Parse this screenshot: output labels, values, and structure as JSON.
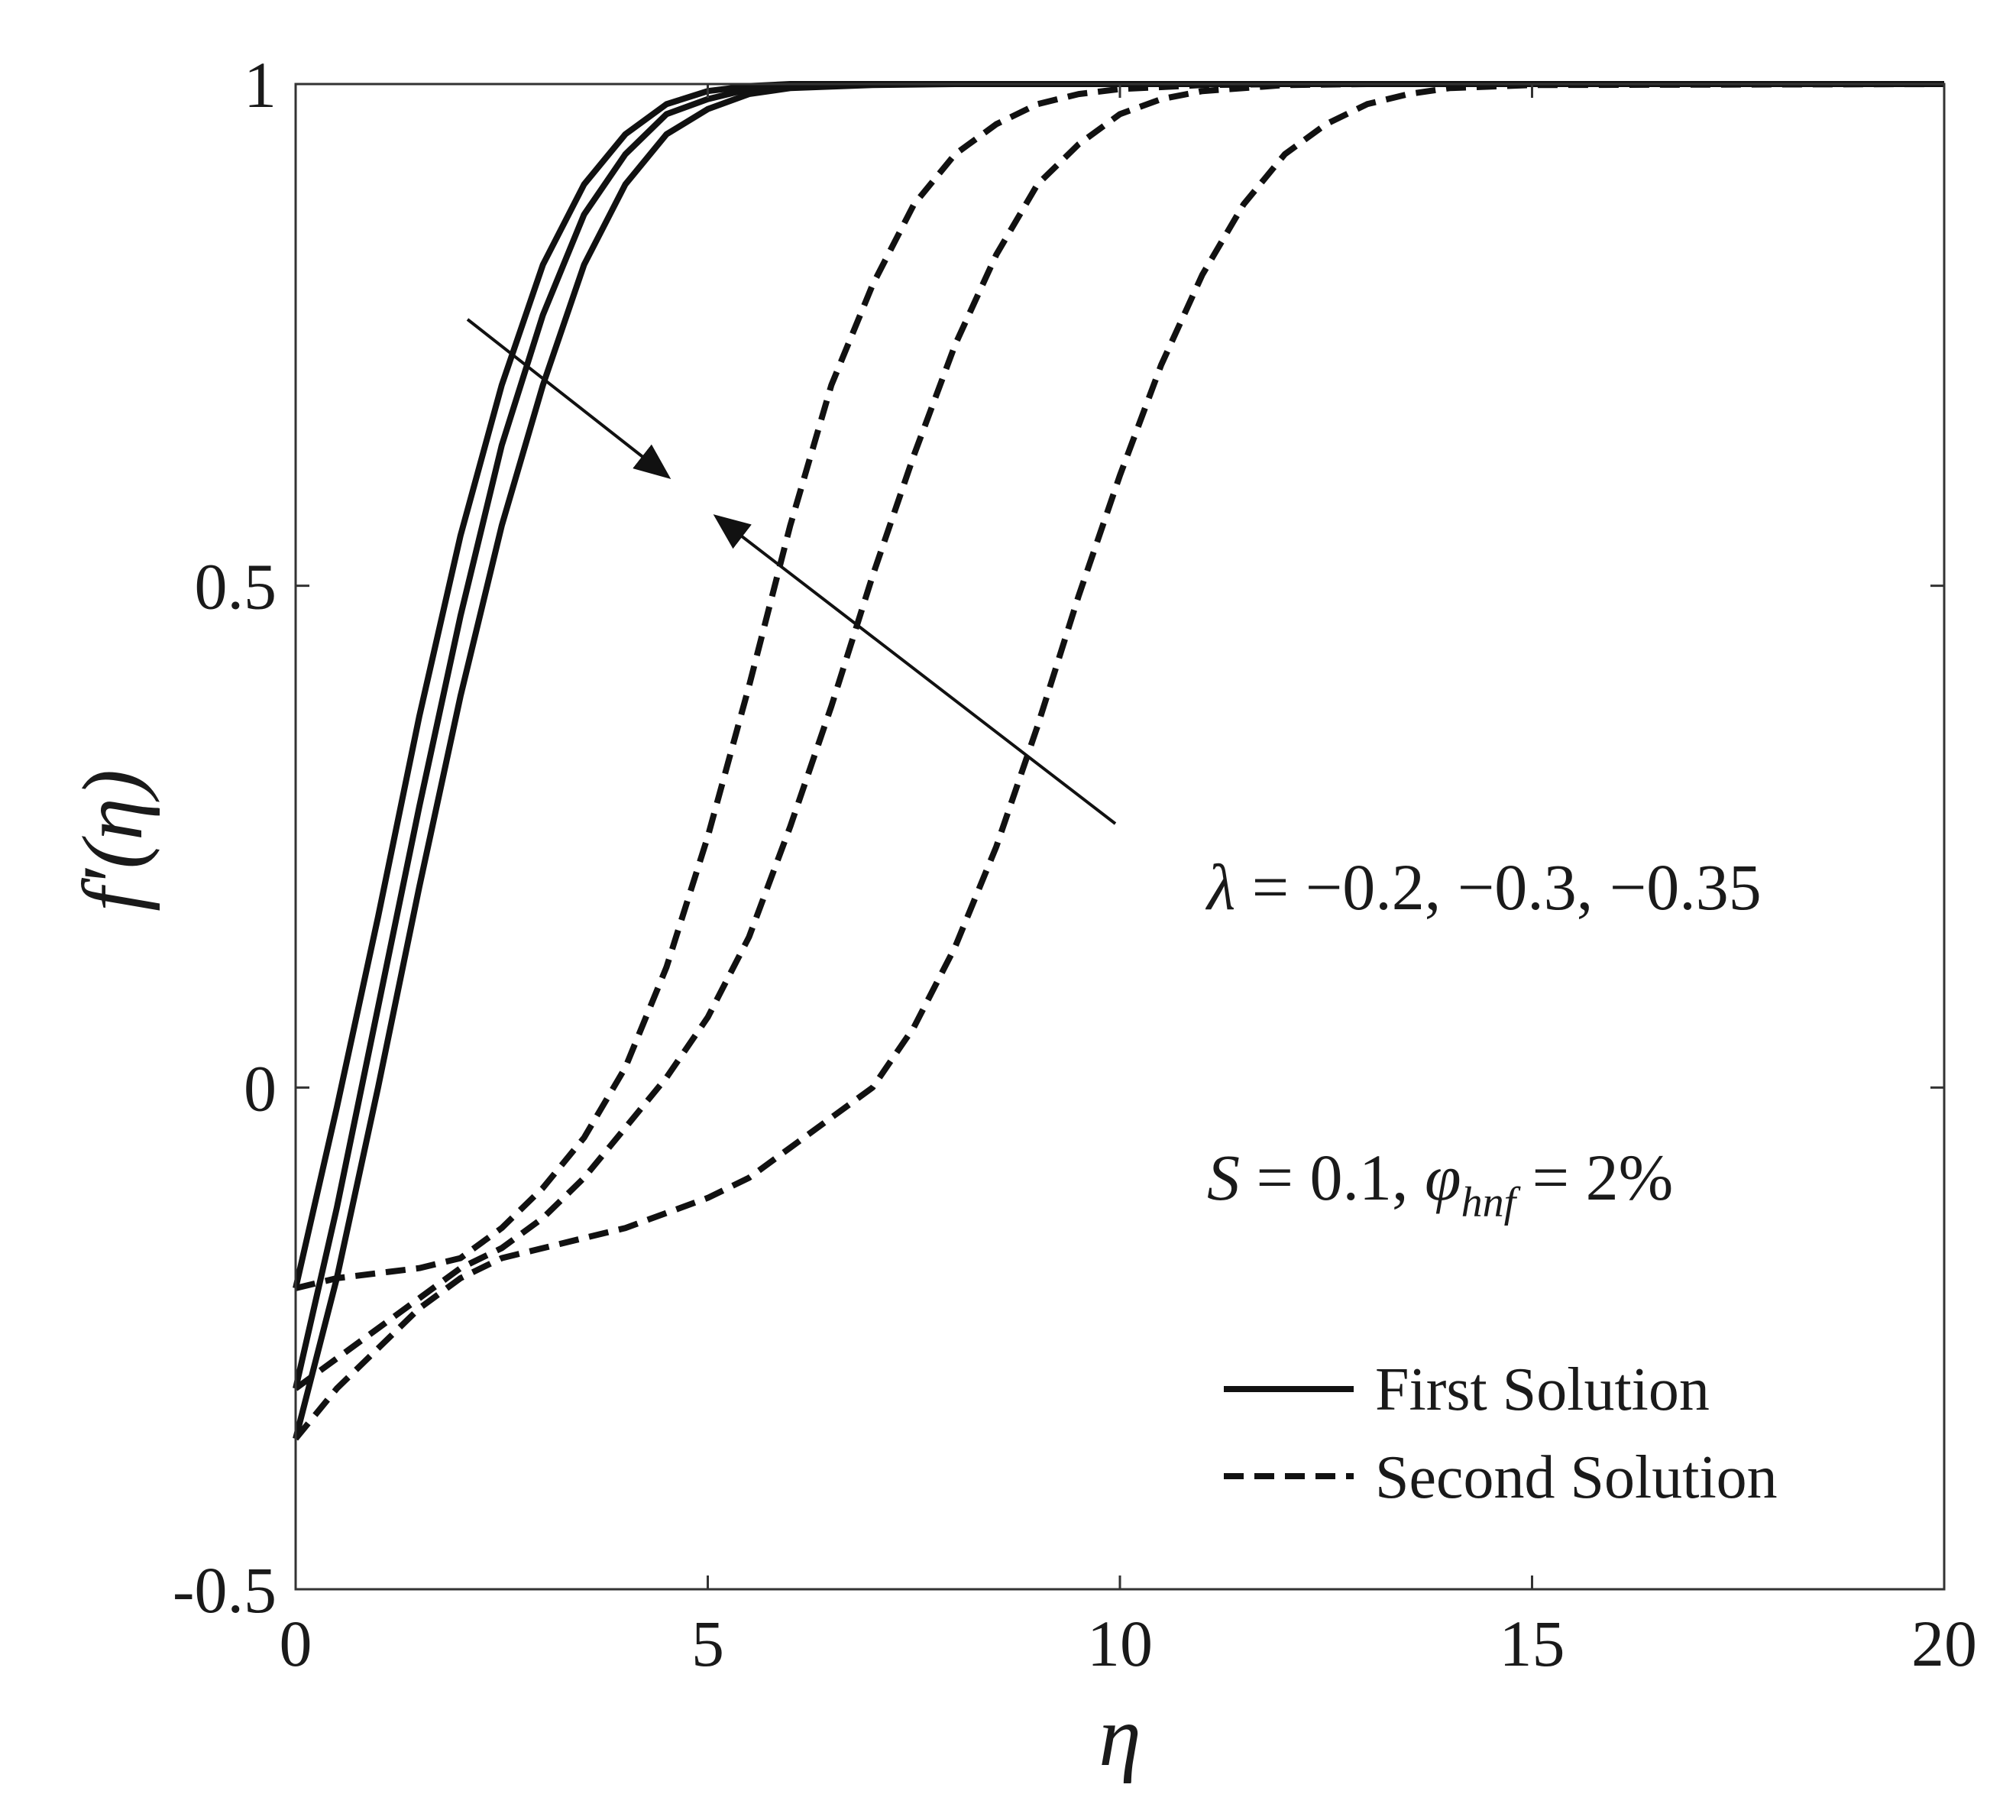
{
  "chart_data": {
    "type": "line",
    "xlabel": "η",
    "ylabel": "f′(η)",
    "xlim": [
      0,
      20
    ],
    "ylim": [
      -0.5,
      1
    ],
    "xticks": [
      0,
      5,
      10,
      15,
      20
    ],
    "yticks": [
      -0.5,
      0,
      0.5,
      1
    ],
    "xtick_labels": [
      "0",
      "5",
      "10",
      "15",
      "20"
    ],
    "ytick_labels": [
      "-0.5",
      "0",
      "0.5",
      "1"
    ],
    "grid": false,
    "legend_position": "bottom-right",
    "legend": [
      {
        "label": "First Solution",
        "style": "solid"
      },
      {
        "label": "Second Solution",
        "style": "dashed"
      }
    ],
    "annotations": {
      "lambda": {
        "symbol": "λ",
        "text": " = −0.2, −0.3, −0.35"
      },
      "params": {
        "symbol_s": "S",
        "text_s": " = 0.1, ",
        "symbol_phi": "φ",
        "subscript": "hnf",
        "text_phi": " = 2%"
      }
    },
    "series": [
      {
        "style": "solid",
        "lambda": -0.2,
        "x": [
          0,
          0.5,
          1,
          1.5,
          2,
          2.5,
          3,
          3.5,
          4,
          4.5,
          5,
          5.5,
          6,
          7,
          8,
          10,
          20
        ],
        "y": [
          -0.2,
          -0.02,
          0.17,
          0.37,
          0.55,
          0.7,
          0.82,
          0.9,
          0.95,
          0.98,
          0.993,
          0.998,
          1.0,
          1.0,
          1.0,
          1.0,
          1.0
        ]
      },
      {
        "style": "solid",
        "lambda": -0.3,
        "x": [
          0,
          0.5,
          1,
          1.5,
          2,
          2.5,
          3,
          3.5,
          4,
          4.5,
          5,
          5.5,
          6,
          7,
          8,
          10,
          20
        ],
        "y": [
          -0.3,
          -0.12,
          0.08,
          0.28,
          0.47,
          0.64,
          0.77,
          0.87,
          0.93,
          0.97,
          0.985,
          0.995,
          0.998,
          1.0,
          1.0,
          1.0,
          1.0
        ]
      },
      {
        "style": "solid",
        "lambda": -0.35,
        "x": [
          0,
          0.5,
          1,
          1.5,
          2,
          2.5,
          3,
          3.5,
          4,
          4.5,
          5,
          5.5,
          6,
          7,
          8,
          10,
          20
        ],
        "y": [
          -0.35,
          -0.19,
          0.0,
          0.2,
          0.39,
          0.56,
          0.7,
          0.82,
          0.9,
          0.95,
          0.975,
          0.99,
          0.996,
          0.999,
          1.0,
          1.0,
          1.0
        ]
      },
      {
        "style": "dashed",
        "lambda": -0.2,
        "x": [
          0,
          0.5,
          1,
          1.5,
          2,
          2.5,
          3,
          3.5,
          4,
          4.5,
          5,
          5.5,
          6,
          6.5,
          7,
          7.5,
          8,
          8.5,
          9,
          9.5,
          10,
          11,
          12,
          20
        ],
        "y": [
          -0.2,
          -0.19,
          -0.185,
          -0.18,
          -0.17,
          -0.14,
          -0.1,
          -0.05,
          0.02,
          0.12,
          0.25,
          0.4,
          0.56,
          0.7,
          0.8,
          0.88,
          0.93,
          0.96,
          0.98,
          0.99,
          0.995,
          0.999,
          1.0,
          1.0
        ]
      },
      {
        "style": "dashed",
        "lambda": -0.3,
        "x": [
          0,
          0.5,
          1,
          1.5,
          2,
          2.5,
          3,
          3.5,
          4,
          4.5,
          5,
          5.5,
          6,
          6.5,
          7,
          7.5,
          8,
          8.5,
          9,
          9.5,
          10,
          10.5,
          11,
          12,
          13,
          20
        ],
        "y": [
          -0.3,
          -0.27,
          -0.24,
          -0.21,
          -0.18,
          -0.16,
          -0.13,
          -0.09,
          -0.04,
          0.01,
          0.07,
          0.15,
          0.26,
          0.38,
          0.51,
          0.63,
          0.74,
          0.83,
          0.9,
          0.94,
          0.97,
          0.985,
          0.993,
          0.999,
          1.0,
          1.0
        ]
      },
      {
        "style": "dashed",
        "lambda": -0.35,
        "x": [
          0,
          0.5,
          1,
          1.5,
          2,
          2.5,
          3,
          3.5,
          4,
          4.5,
          5,
          5.5,
          6,
          6.5,
          7,
          7.5,
          8,
          8.5,
          9,
          9.5,
          10,
          10.5,
          11,
          11.5,
          12,
          12.5,
          13,
          13.5,
          14,
          15,
          20
        ],
        "y": [
          -0.35,
          -0.3,
          -0.26,
          -0.22,
          -0.19,
          -0.17,
          -0.16,
          -0.15,
          -0.14,
          -0.125,
          -0.11,
          -0.09,
          -0.06,
          -0.03,
          0.0,
          0.06,
          0.14,
          0.24,
          0.36,
          0.49,
          0.61,
          0.72,
          0.81,
          0.88,
          0.93,
          0.96,
          0.98,
          0.99,
          0.996,
          0.999,
          1.0
        ]
      }
    ]
  }
}
